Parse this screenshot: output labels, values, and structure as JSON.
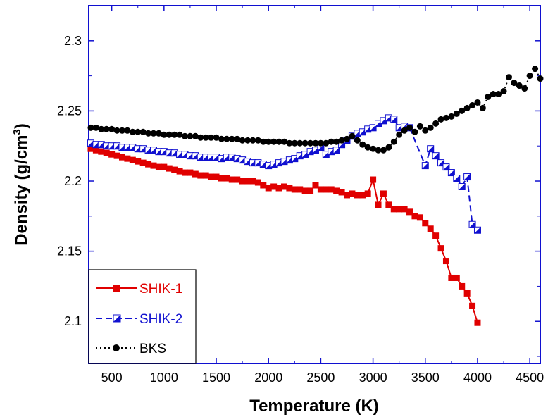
{
  "chart_data": {
    "type": "line",
    "xlabel": "Temperature (K)",
    "ylabel_main": "Density (g/cm",
    "ylabel_sup": "3",
    "ylabel_close": ")",
    "xlim": [
      280,
      4600
    ],
    "ylim": [
      2.07,
      2.325
    ],
    "xticks": [
      500,
      1000,
      1500,
      2000,
      2500,
      3000,
      3500,
      4000,
      4500
    ],
    "yticks": [
      2.1,
      2.15,
      2.2,
      2.25,
      2.3
    ],
    "ytick_labels": [
      "2.1",
      "2.15",
      "2.2",
      "2.25",
      "2.3"
    ],
    "legend_position": "bottom-left",
    "series": [
      {
        "name": "SHIK-1",
        "color": "#e00000",
        "marker": "square",
        "line": "solid",
        "x": [
          300,
          350,
          400,
          450,
          500,
          550,
          600,
          650,
          700,
          750,
          800,
          850,
          900,
          950,
          1000,
          1050,
          1100,
          1150,
          1200,
          1250,
          1300,
          1350,
          1400,
          1450,
          1500,
          1550,
          1600,
          1650,
          1700,
          1750,
          1800,
          1850,
          1900,
          1950,
          2000,
          2050,
          2100,
          2150,
          2200,
          2250,
          2300,
          2350,
          2400,
          2450,
          2500,
          2550,
          2600,
          2650,
          2700,
          2750,
          2800,
          2850,
          2900,
          2950,
          3000,
          3050,
          3100,
          3150,
          3200,
          3250,
          3300,
          3350,
          3400,
          3450,
          3500,
          3550,
          3600,
          3650,
          3700,
          3750,
          3800,
          3850,
          3900,
          3950,
          4000
        ],
        "y": [
          2.223,
          2.222,
          2.221,
          2.22,
          2.219,
          2.218,
          2.217,
          2.216,
          2.215,
          2.214,
          2.213,
          2.212,
          2.211,
          2.21,
          2.21,
          2.209,
          2.208,
          2.207,
          2.206,
          2.206,
          2.205,
          2.204,
          2.204,
          2.203,
          2.203,
          2.202,
          2.202,
          2.201,
          2.201,
          2.2,
          2.2,
          2.2,
          2.199,
          2.197,
          2.195,
          2.196,
          2.195,
          2.196,
          2.195,
          2.194,
          2.194,
          2.193,
          2.193,
          2.197,
          2.194,
          2.194,
          2.194,
          2.193,
          2.192,
          2.19,
          2.191,
          2.19,
          2.19,
          2.191,
          2.201,
          2.183,
          2.191,
          2.183,
          2.18,
          2.18,
          2.18,
          2.178,
          2.175,
          2.174,
          2.17,
          2.166,
          2.161,
          2.152,
          2.143,
          2.131,
          2.131,
          2.125,
          2.12,
          2.111,
          2.099
        ]
      },
      {
        "name": "SHIK-2",
        "color": "#1010d0",
        "marker": "half-square",
        "line": "dashed",
        "x": [
          300,
          350,
          400,
          450,
          500,
          550,
          600,
          650,
          700,
          750,
          800,
          850,
          900,
          950,
          1000,
          1050,
          1100,
          1150,
          1200,
          1250,
          1300,
          1350,
          1400,
          1450,
          1500,
          1550,
          1600,
          1650,
          1700,
          1750,
          1800,
          1850,
          1900,
          1950,
          2000,
          2050,
          2100,
          2150,
          2200,
          2250,
          2300,
          2350,
          2400,
          2450,
          2500,
          2550,
          2600,
          2650,
          2700,
          2750,
          2800,
          2850,
          2900,
          2950,
          3000,
          3050,
          3100,
          3150,
          3200,
          3250,
          3300,
          3350,
          3500,
          3550,
          3600,
          3650,
          3700,
          3750,
          3800,
          3850,
          3900,
          3950,
          4000
        ],
        "y": [
          2.227,
          2.226,
          2.226,
          2.225,
          2.225,
          2.225,
          2.224,
          2.224,
          2.224,
          2.223,
          2.223,
          2.222,
          2.222,
          2.221,
          2.221,
          2.22,
          2.22,
          2.219,
          2.219,
          2.218,
          2.218,
          2.217,
          2.217,
          2.217,
          2.217,
          2.216,
          2.217,
          2.217,
          2.216,
          2.215,
          2.214,
          2.213,
          2.213,
          2.212,
          2.211,
          2.212,
          2.213,
          2.214,
          2.215,
          2.216,
          2.218,
          2.219,
          2.221,
          2.222,
          2.224,
          2.219,
          2.221,
          2.222,
          2.226,
          2.229,
          2.232,
          2.234,
          2.235,
          2.237,
          2.238,
          2.241,
          2.243,
          2.245,
          2.244,
          2.238,
          2.239,
          2.238,
          2.211,
          2.223,
          2.218,
          2.213,
          2.21,
          2.206,
          2.202,
          2.196,
          2.203,
          2.169,
          2.165
        ]
      },
      {
        "name": "BKS",
        "color": "#000000",
        "marker": "circle",
        "line": "dotted",
        "x": [
          300,
          350,
          400,
          450,
          500,
          550,
          600,
          650,
          700,
          750,
          800,
          850,
          900,
          950,
          1000,
          1050,
          1100,
          1150,
          1200,
          1250,
          1300,
          1350,
          1400,
          1450,
          1500,
          1550,
          1600,
          1650,
          1700,
          1750,
          1800,
          1850,
          1900,
          1950,
          2000,
          2050,
          2100,
          2150,
          2200,
          2250,
          2300,
          2350,
          2400,
          2450,
          2500,
          2550,
          2600,
          2650,
          2700,
          2750,
          2800,
          2850,
          2900,
          2950,
          3000,
          3050,
          3100,
          3150,
          3200,
          3250,
          3300,
          3350,
          3400,
          3450,
          3500,
          3550,
          3600,
          3650,
          3700,
          3750,
          3800,
          3850,
          3900,
          3950,
          4000,
          4050,
          4100,
          4150,
          4200,
          4250,
          4300,
          4350,
          4400,
          4450,
          4500,
          4550,
          4600
        ],
        "y": [
          2.238,
          2.238,
          2.237,
          2.237,
          2.237,
          2.236,
          2.236,
          2.236,
          2.235,
          2.235,
          2.235,
          2.234,
          2.234,
          2.234,
          2.233,
          2.233,
          2.233,
          2.233,
          2.232,
          2.232,
          2.232,
          2.231,
          2.231,
          2.231,
          2.231,
          2.23,
          2.23,
          2.23,
          2.23,
          2.229,
          2.229,
          2.229,
          2.229,
          2.228,
          2.228,
          2.228,
          2.228,
          2.228,
          2.227,
          2.227,
          2.227,
          2.227,
          2.227,
          2.227,
          2.227,
          2.227,
          2.228,
          2.228,
          2.229,
          2.23,
          2.232,
          2.229,
          2.226,
          2.224,
          2.223,
          2.222,
          2.222,
          2.224,
          2.228,
          2.233,
          2.236,
          2.238,
          2.235,
          2.239,
          2.236,
          2.238,
          2.241,
          2.244,
          2.245,
          2.246,
          2.248,
          2.25,
          2.252,
          2.254,
          2.256,
          2.252,
          2.26,
          2.262,
          2.262,
          2.264,
          2.274,
          2.27,
          2.268,
          2.266,
          2.275,
          2.28,
          2.273
        ]
      }
    ]
  }
}
